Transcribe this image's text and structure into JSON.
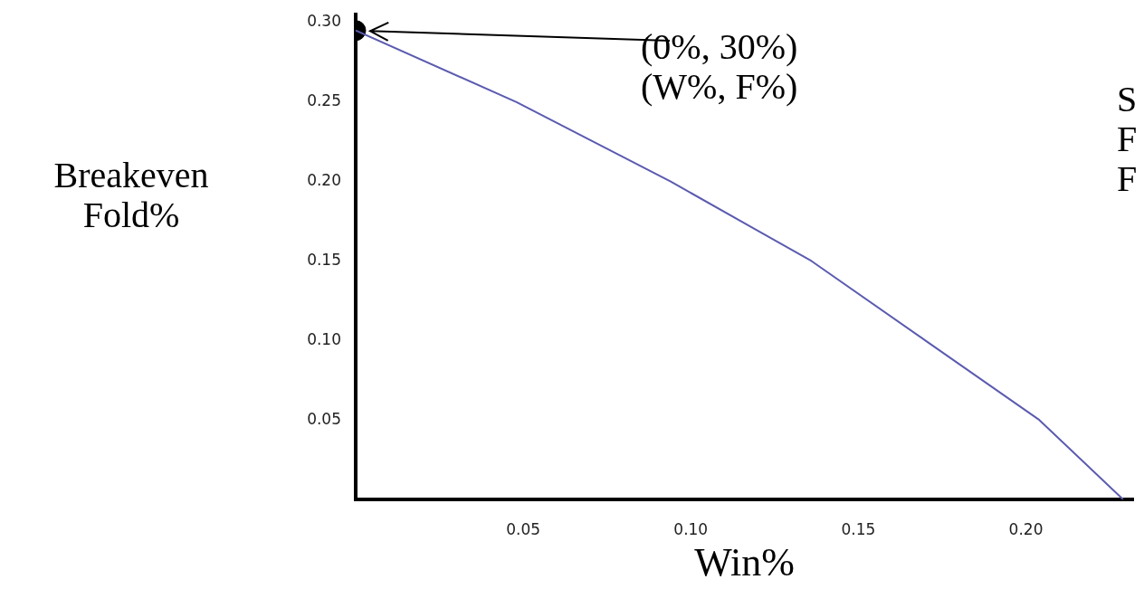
{
  "chart_data": {
    "type": "line",
    "xlabel": "Win%",
    "ylabel": "Breakeven\nFold%",
    "xlim": [
      0,
      0.232
    ],
    "ylim": [
      0,
      0.305
    ],
    "xticks": [
      {
        "value": 0.05,
        "label": "0.05"
      },
      {
        "value": 0.1,
        "label": "0.10"
      },
      {
        "value": 0.15,
        "label": "0.15"
      },
      {
        "value": 0.2,
        "label": "0.20"
      }
    ],
    "yticks": [
      {
        "value": 0.05,
        "label": "0.05"
      },
      {
        "value": 0.1,
        "label": "0.10"
      },
      {
        "value": 0.15,
        "label": "0.15"
      },
      {
        "value": 0.2,
        "label": "0.20"
      },
      {
        "value": 0.25,
        "label": "0.25"
      },
      {
        "value": 0.3,
        "label": "0.30"
      }
    ],
    "grid": false,
    "legend": false,
    "series": [
      {
        "type": "line",
        "color": "#5b5bb0",
        "marker": "none",
        "x": [
          0,
          0.048,
          0.094,
          0.136,
          0.17,
          0.204,
          0.229
        ],
        "values": [
          0.295,
          0.25,
          0.2,
          0.15,
          0.1,
          0.05,
          0
        ]
      },
      {
        "type": "scatter",
        "color": "#000000",
        "marker": "circle",
        "x": [
          0
        ],
        "values": [
          0.295
        ]
      }
    ],
    "annotations": [
      "(0%, 30%)\n(W%, F%)",
      "S",
      "F",
      "F"
    ]
  }
}
